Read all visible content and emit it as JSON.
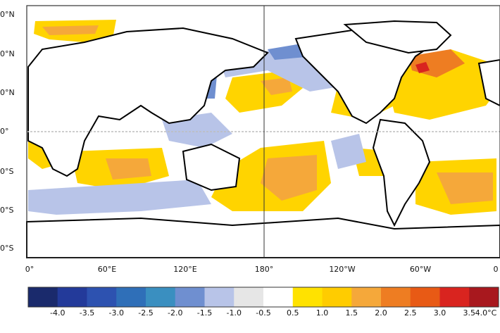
{
  "map": {
    "lat_labels": [
      "0°N",
      "0°N",
      "0°N",
      "0°",
      "0°S",
      "0°S",
      "0°S"
    ],
    "lon_labels": [
      "0°",
      "60°E",
      "120°E",
      "180°",
      "120°W",
      "60°W",
      "0"
    ],
    "colors": {
      "land": "#ffffff",
      "coast": "#000000",
      "frame": "#333333"
    }
  },
  "colorbar": {
    "labels": [
      "-4.0",
      "-3.5",
      "-3.0",
      "-2.5",
      "-2.0",
      "-1.5",
      "-1.0",
      "-0.5",
      "0.5",
      "1.0",
      "1.5",
      "2.0",
      "2.5",
      "3.0",
      "3.5",
      "4.0°C"
    ],
    "colors": [
      "#1a2a6c",
      "#233a9a",
      "#2d52b0",
      "#2f6fb8",
      "#3a8fc0",
      "#6f8fd0",
      "#b8c4e8",
      "#e6e6e6",
      "#ffffff",
      "#ffe200",
      "#ffcc00",
      "#f5a83a",
      "#ee7d22",
      "#e85a15",
      "#d9241f",
      "#a8181e"
    ]
  }
}
